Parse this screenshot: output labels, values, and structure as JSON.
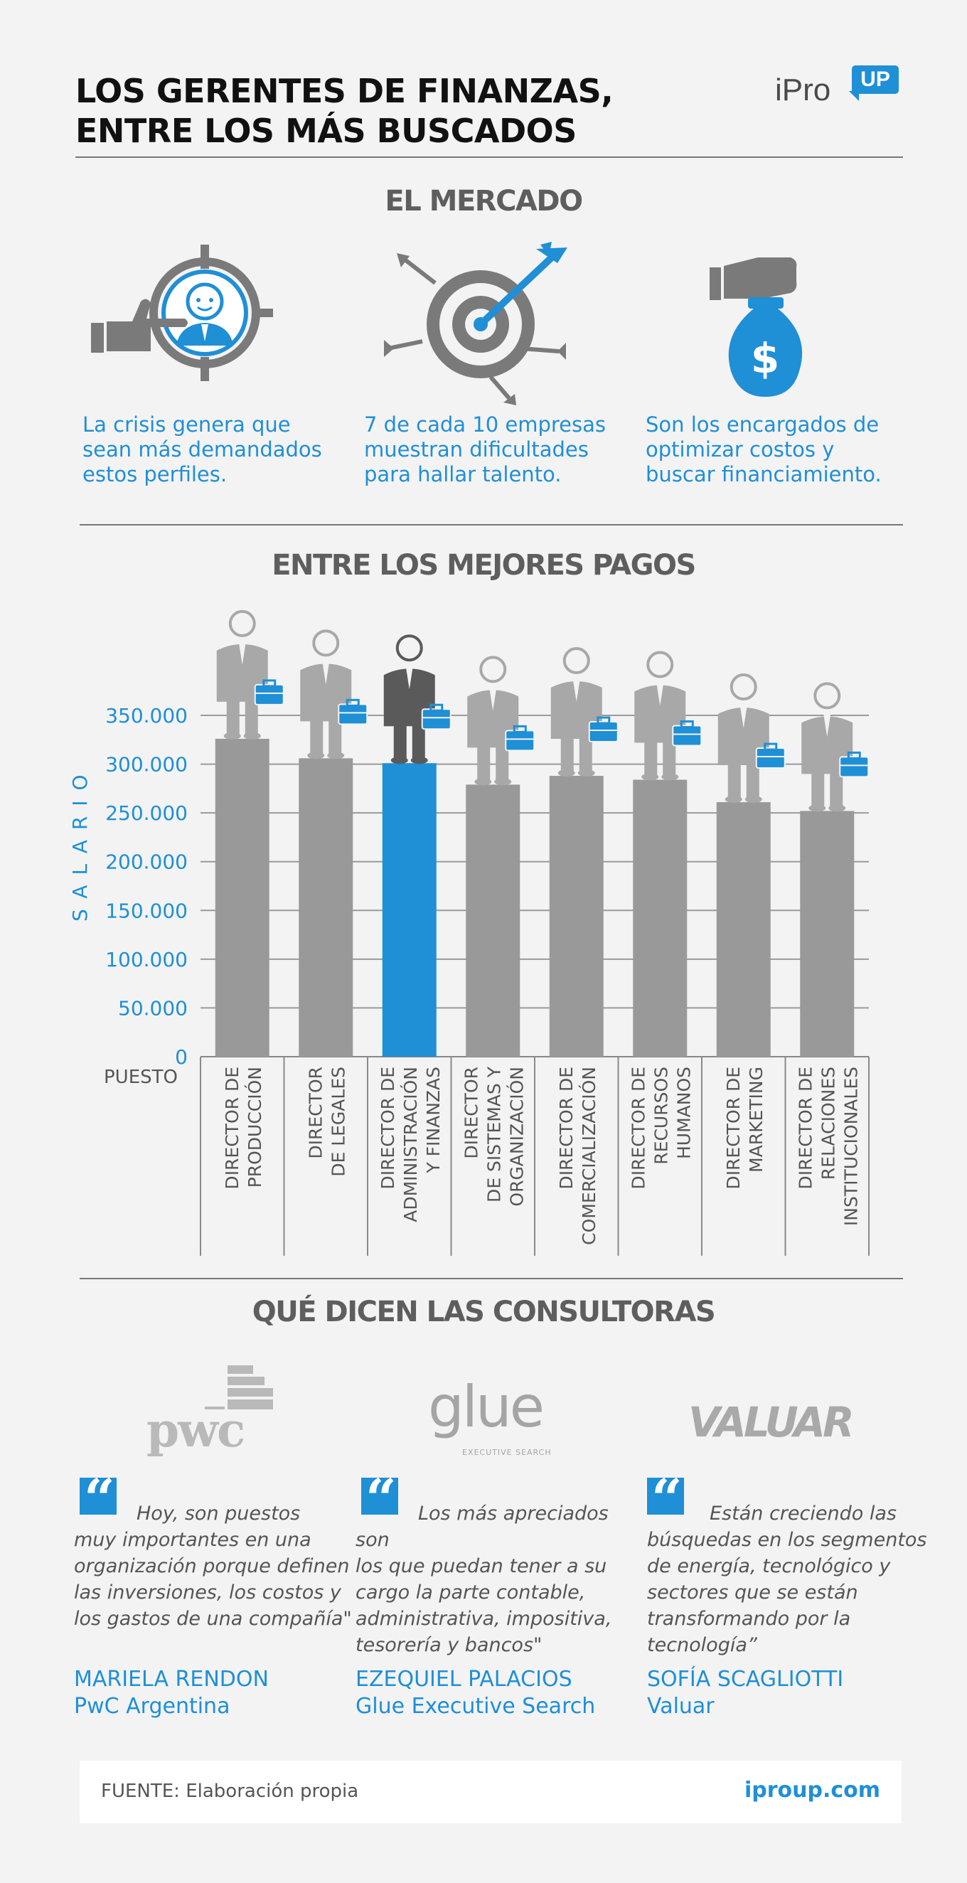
{
  "header": {
    "title_line1": "LOS GERENTES DE FINANZAS,",
    "title_line2": "ENTRE LOS MÁS BUSCADOS",
    "logo_text": "iPro",
    "logo_badge": "UP"
  },
  "market": {
    "title": "EL MERCADO",
    "items": [
      {
        "icon": "pointing-hand-target-person-icon",
        "line1": "La crisis genera que",
        "line2": "sean más demandados",
        "line3": "estos perfiles."
      },
      {
        "icon": "dartboard-arrows-icon",
        "line1": "7 de cada 10 empresas",
        "line2": "muestran dificultades",
        "line3": "para hallar talento."
      },
      {
        "icon": "hand-money-bag-icon",
        "line1": "Son los encargados de",
        "line2": "optimizar costos y",
        "line3": "buscar financiamiento."
      }
    ]
  },
  "salaries": {
    "title": "ENTRE LOS MEJORES PAGOS",
    "ylabel": "SALARIO",
    "xlabel": "PUESTO",
    "money_icon": "dollar-sign-icon"
  },
  "chart_data": {
    "type": "bar",
    "title": "ENTRE LOS MEJORES PAGOS",
    "ylabel": "SALARIO",
    "xlabel": "PUESTO",
    "ylim": [
      0,
      350000
    ],
    "yticks": [
      "0",
      "50.000",
      "100.000",
      "150.000",
      "200.000",
      "250.000",
      "300.000",
      "350.000"
    ],
    "ytick_values": [
      0,
      50000,
      100000,
      150000,
      200000,
      250000,
      300000,
      350000
    ],
    "grid": true,
    "highlight_color": "#1f8fd6",
    "bar_color": "#999999",
    "categories": [
      [
        "DIRECTOR DE",
        "PRODUCCIÓN"
      ],
      [
        "DIRECTOR",
        "DE LEGALES"
      ],
      [
        "DIRECTOR DE",
        "ADMINISTRACIÓN",
        "Y FINANZAS"
      ],
      [
        "DIRECTOR",
        "DE SISTEMAS Y",
        "ORGANIZACIÓN"
      ],
      [
        "DIRECTOR DE",
        "COMERCIALIZACIÓN"
      ],
      [
        "DIRECTOR DE",
        "RECURSOS",
        "HUMANOS"
      ],
      [
        "DIRECTOR DE",
        "MARKETING"
      ],
      [
        "DIRECTOR DE",
        "RELACIONES",
        "INSTITUCIONALES"
      ]
    ],
    "values": [
      326000,
      306000,
      301000,
      279000,
      288000,
      284000,
      261000,
      252000
    ],
    "highlight_index": 2
  },
  "consultoras": {
    "title": "QUÉ DICEN LAS CONSULTORAS",
    "logos": [
      {
        "name": "pwc",
        "sub": ""
      },
      {
        "name": "glue",
        "sub": "EXECUTIVE SEARCH"
      },
      {
        "name": "VALUAR",
        "sub": ""
      }
    ],
    "quotes": [
      {
        "lines": [
          "Hoy, son puestos",
          "muy importantes en una",
          "organización porque definen",
          "las inversiones, los costos y",
          "los gastos de una compañía\""
        ],
        "author": "MARIELA RENDON",
        "company": "PwC Argentina"
      },
      {
        "lines": [
          "Los más apreciados son",
          "los que puedan tener a su",
          "cargo la parte contable,",
          "administrativa, impositiva,",
          "tesorería y bancos\""
        ],
        "author": "EZEQUIEL PALACIOS",
        "company": "Glue Executive Search"
      },
      {
        "lines": [
          "Están creciendo las",
          "búsquedas en los segmentos",
          "de energía, tecnológico y",
          "sectores que se están",
          "transformando por la",
          "tecnología”"
        ],
        "author": "SOFÍA SCAGLIOTTI",
        "company": "Valuar"
      }
    ]
  },
  "footer": {
    "source": "FUENTE: Elaboración propia",
    "url": "iproup.com"
  }
}
